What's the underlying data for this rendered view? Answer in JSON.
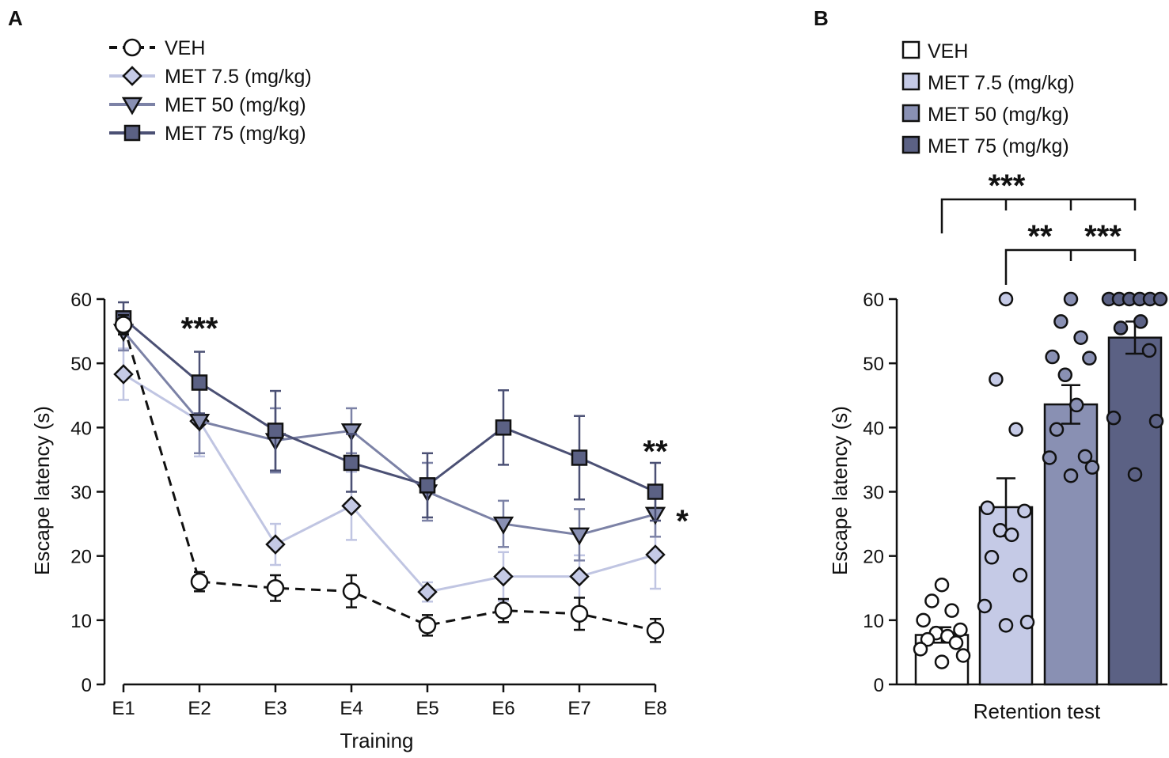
{
  "panels": {
    "a_label": "A",
    "b_label": "B"
  },
  "colors": {
    "veh": "#ffffff",
    "met7_5": "#c5cae6",
    "met50": "#8990b3",
    "met75": "#5b6184",
    "line7_5": "#c0c5e2",
    "line50": "#7c82a6",
    "line75": "#4b5074",
    "stroke": "#111111"
  },
  "chart_data": [
    {
      "type": "line",
      "panel": "A",
      "xlabel": "Training",
      "ylabel": "Escape latency (s)",
      "categories": [
        "E1",
        "E2",
        "E3",
        "E4",
        "E5",
        "E6",
        "E7",
        "E8"
      ],
      "ylim": [
        0,
        60
      ],
      "yticks": [
        0,
        10,
        20,
        30,
        40,
        50,
        60
      ],
      "legend": [
        "VEH",
        "MET 7.5 (mg/kg)",
        "MET 50 (mg/kg)",
        "MET 75 (mg/kg)"
      ],
      "series": [
        {
          "key": "met7_5",
          "name": "MET 7.5 (mg/kg)",
          "marker": "diamond",
          "dash": false,
          "values": [
            48.3,
            41.0,
            21.8,
            27.8,
            14.4,
            16.8,
            16.8,
            20.2
          ],
          "errors": [
            4.0,
            5.5,
            3.2,
            5.3,
            1.5,
            3.8,
            3.3,
            5.3
          ]
        },
        {
          "key": "met50",
          "name": "MET 50 (mg/kg)",
          "marker": "triangle-down",
          "dash": false,
          "values": [
            55.0,
            41.0,
            38.0,
            39.5,
            30.0,
            25.0,
            23.3,
            26.5
          ],
          "errors": [
            3.0,
            5.0,
            5.0,
            3.5,
            4.5,
            3.6,
            4.0,
            3.5
          ]
        },
        {
          "key": "met75",
          "name": "MET 75 (mg/kg)",
          "marker": "square",
          "dash": false,
          "values": [
            57.0,
            47.0,
            39.5,
            34.5,
            31.0,
            40.0,
            35.3,
            30.0
          ],
          "errors": [
            2.5,
            4.8,
            6.2,
            4.5,
            5.0,
            5.8,
            6.5,
            4.5
          ]
        },
        {
          "key": "veh",
          "name": "VEH",
          "marker": "circle",
          "dash": true,
          "values": [
            56.0,
            16.0,
            15.0,
            14.5,
            9.2,
            11.5,
            11.0,
            8.4
          ],
          "errors": [
            1.5,
            1.5,
            2.0,
            2.5,
            1.6,
            1.8,
            2.5,
            1.8
          ]
        }
      ],
      "annotations": [
        {
          "text": "***",
          "category": "E2",
          "y": 56.5
        },
        {
          "text": "**",
          "category": "E8",
          "y": 37.3
        },
        {
          "text": "*",
          "category": "E8",
          "y": 26.5
        }
      ]
    },
    {
      "type": "bar",
      "panel": "B",
      "xlabel": "Retention test",
      "ylabel": "Escape latency (s)",
      "ylim": [
        0,
        60
      ],
      "yticks": [
        0,
        10,
        20,
        30,
        40,
        50,
        60
      ],
      "series": [
        {
          "key": "veh",
          "name": "VEH",
          "value": 7.7,
          "error": 1.2,
          "points": [
            15.5,
            13.0,
            11.5,
            10.0,
            8.5,
            8.0,
            7.5,
            7.0,
            6.5,
            5.5,
            4.5,
            3.5
          ]
        },
        {
          "key": "met7_5",
          "name": "MET 7.5 (mg/kg)",
          "value": 27.6,
          "error": 4.5,
          "points": [
            60.0,
            47.5,
            39.7,
            27.5,
            27.0,
            24.0,
            23.3,
            19.8,
            17.0,
            12.2,
            9.7,
            9.2
          ]
        },
        {
          "key": "met50",
          "name": "MET 50 (mg/kg)",
          "value": 43.6,
          "error": 3.0,
          "points": [
            60.0,
            56.5,
            54.0,
            51.0,
            50.8,
            48.2,
            43.5,
            39.7,
            35.5,
            35.3,
            33.8,
            32.5
          ]
        },
        {
          "key": "met75",
          "name": "MET 75 (mg/kg)",
          "value": 54.0,
          "error": 2.5,
          "points": [
            60.0,
            60.0,
            60.0,
            60.0,
            60.0,
            60.0,
            56.5,
            55.5,
            52.0,
            41.5,
            41.0,
            32.7
          ]
        }
      ],
      "significance": [
        {
          "text": "***",
          "from": 0,
          "to": [
            1,
            2,
            3
          ],
          "level": 1
        },
        {
          "text": "**",
          "from": 1,
          "to": [
            2
          ],
          "level": 0
        },
        {
          "text": "***",
          "from": 2,
          "to": [
            3
          ],
          "level": 0
        }
      ]
    }
  ]
}
